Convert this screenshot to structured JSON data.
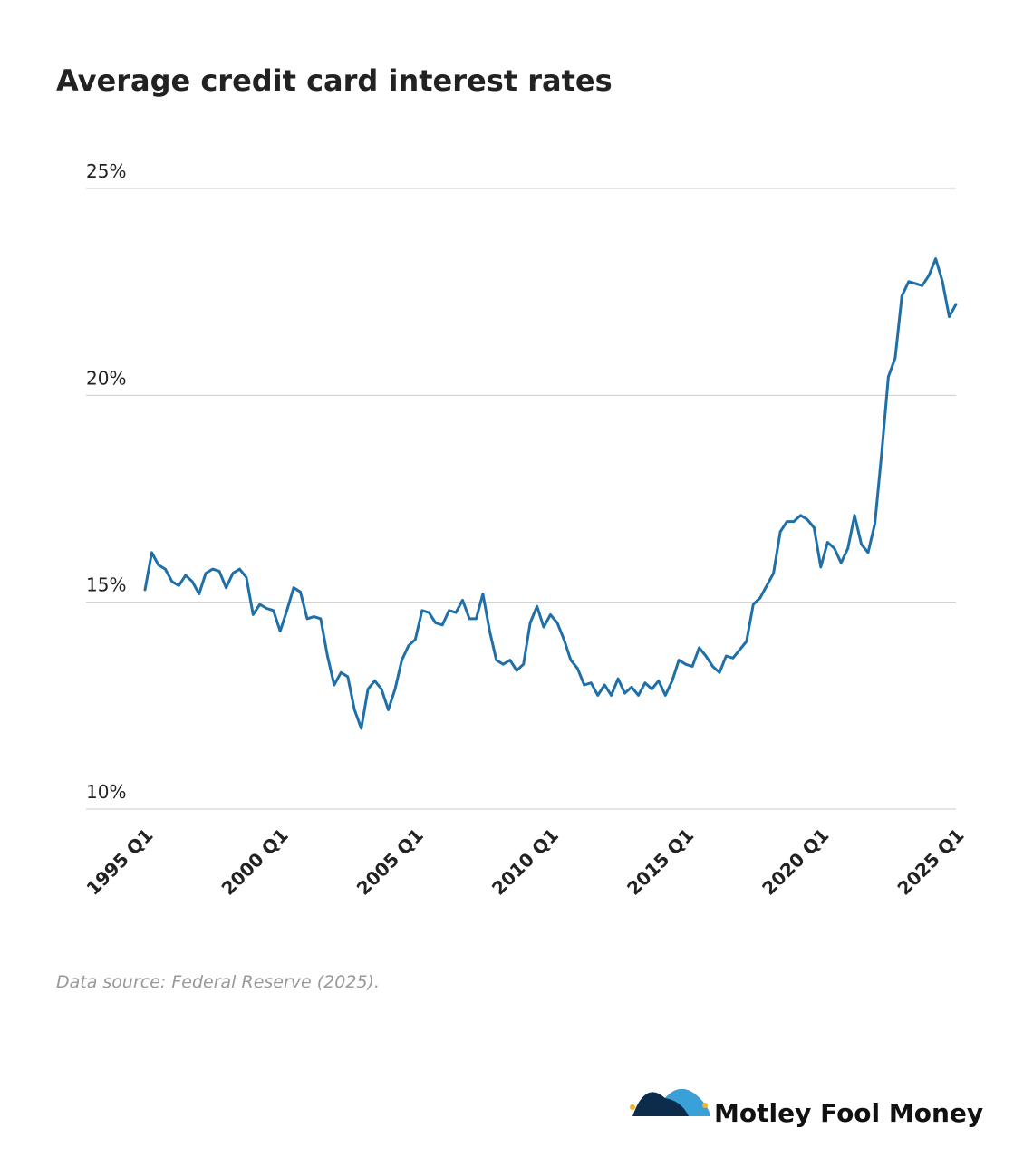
{
  "chart_data": {
    "type": "line",
    "title": "Average credit card interest rates",
    "categories": [
      "1995 Q1",
      null,
      null,
      null,
      null,
      null,
      null,
      null,
      null,
      null,
      null,
      null,
      null,
      null,
      null,
      null,
      null,
      null,
      null,
      null,
      "2000 Q1",
      null,
      null,
      null,
      null,
      null,
      null,
      null,
      null,
      null,
      null,
      null,
      null,
      null,
      null,
      null,
      null,
      null,
      null,
      null,
      "2005 Q1",
      null,
      null,
      null,
      null,
      null,
      null,
      null,
      null,
      null,
      null,
      null,
      null,
      null,
      null,
      null,
      null,
      null,
      null,
      null,
      "2010 Q1",
      null,
      null,
      null,
      null,
      null,
      null,
      null,
      null,
      null,
      null,
      null,
      null,
      null,
      null,
      null,
      null,
      null,
      null,
      null,
      "2015 Q1",
      null,
      null,
      null,
      null,
      null,
      null,
      null,
      null,
      null,
      null,
      null,
      null,
      null,
      null,
      null,
      null,
      null,
      null,
      null,
      "2020 Q1",
      null,
      null,
      null,
      null,
      null,
      null,
      null,
      null,
      null,
      null,
      null,
      null,
      null,
      null,
      null,
      null,
      null,
      null,
      null,
      "2025 Q1"
    ],
    "values": [
      15.3,
      16.2,
      15.9,
      15.8,
      15.5,
      15.4,
      15.65,
      15.5,
      15.2,
      15.7,
      15.8,
      15.75,
      15.35,
      15.7,
      15.8,
      15.6,
      14.7,
      14.95,
      14.85,
      14.8,
      14.3,
      14.8,
      15.35,
      15.25,
      14.6,
      14.65,
      14.6,
      13.7,
      13.0,
      13.3,
      13.2,
      12.4,
      11.95,
      12.9,
      13.1,
      12.9,
      12.4,
      12.9,
      13.6,
      13.95,
      14.1,
      14.8,
      14.75,
      14.5,
      14.45,
      14.8,
      14.75,
      15.05,
      14.6,
      14.6,
      15.2,
      14.3,
      13.6,
      13.5,
      13.6,
      13.35,
      13.5,
      14.5,
      14.9,
      14.4,
      14.7,
      14.5,
      14.1,
      13.6,
      13.4,
      13.0,
      13.05,
      12.75,
      13.0,
      12.75,
      13.15,
      12.8,
      12.95,
      12.75,
      13.05,
      12.9,
      13.1,
      12.75,
      13.1,
      13.6,
      13.5,
      13.45,
      13.9,
      13.7,
      13.45,
      13.3,
      13.7,
      13.65,
      13.85,
      14.05,
      14.95,
      15.1,
      15.4,
      15.7,
      16.7,
      16.95,
      16.95,
      17.1,
      17.0,
      16.8,
      15.85,
      16.45,
      16.3,
      15.95,
      16.3,
      17.1,
      16.4,
      16.2,
      16.9,
      18.6,
      20.45,
      20.9,
      22.4,
      22.75,
      22.7,
      22.65,
      22.9,
      23.3,
      22.75,
      21.9,
      22.2
    ],
    "color": "#1f6fa8",
    "ylim": [
      10,
      25
    ],
    "yticks": [
      {
        "value": 10,
        "label": "10%"
      },
      {
        "value": 15,
        "label": "15%"
      },
      {
        "value": 20,
        "label": "20%"
      },
      {
        "value": 25,
        "label": "25%"
      }
    ],
    "grid": true,
    "source": "Data source: Federal Reserve (2025).",
    "brand": "Motley Fool Money"
  }
}
